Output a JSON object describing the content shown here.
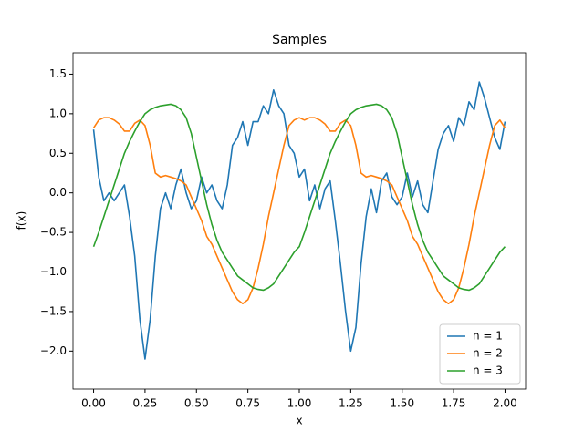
{
  "chart_data": {
    "type": "line",
    "title": "Samples",
    "x_label": "x",
    "y_label": "f(x)",
    "x": [
      0,
      0.025,
      0.05,
      0.075,
      0.1,
      0.125,
      0.15,
      0.175,
      0.2,
      0.225,
      0.25,
      0.275,
      0.3,
      0.325,
      0.35,
      0.375,
      0.4,
      0.425,
      0.45,
      0.475,
      0.5,
      0.525,
      0.55,
      0.575,
      0.6,
      0.625,
      0.65,
      0.675,
      0.7,
      0.725,
      0.75,
      0.775,
      0.8,
      0.825,
      0.85,
      0.875,
      0.9,
      0.925,
      0.95,
      0.975,
      1,
      1.025,
      1.05,
      1.075,
      1.1,
      1.125,
      1.15,
      1.175,
      1.2,
      1.225,
      1.25,
      1.275,
      1.3,
      1.325,
      1.35,
      1.375,
      1.4,
      1.425,
      1.45,
      1.475,
      1.5,
      1.525,
      1.55,
      1.575,
      1.6,
      1.625,
      1.65,
      1.675,
      1.7,
      1.725,
      1.75,
      1.775,
      1.8,
      1.825,
      1.85,
      1.875,
      1.9,
      1.925,
      1.95,
      1.975,
      2
    ],
    "series": [
      {
        "name": "n = 1",
        "color": "#1f77b4",
        "values": [
          0.8,
          0.2,
          -0.1,
          0.0,
          -0.1,
          0.0,
          0.1,
          -0.3,
          -0.8,
          -1.6,
          -2.1,
          -1.6,
          -0.8,
          -0.2,
          0.0,
          -0.2,
          0.1,
          0.3,
          0.0,
          -0.2,
          -0.1,
          0.2,
          0.0,
          0.1,
          -0.1,
          -0.2,
          0.1,
          0.6,
          0.7,
          0.9,
          0.6,
          0.9,
          0.9,
          1.1,
          1.0,
          1.3,
          1.1,
          1.0,
          0.6,
          0.5,
          0.2,
          0.3,
          -0.1,
          0.1,
          -0.2,
          0.05,
          0.15,
          -0.35,
          -0.9,
          -1.5,
          -2.0,
          -1.7,
          -0.9,
          -0.3,
          0.05,
          -0.25,
          0.15,
          0.25,
          -0.05,
          -0.15,
          -0.05,
          0.25,
          -0.05,
          0.15,
          -0.15,
          -0.25,
          0.15,
          0.55,
          0.75,
          0.85,
          0.65,
          0.95,
          0.85,
          1.15,
          1.05,
          1.4,
          1.2,
          0.95,
          0.7,
          0.55,
          0.9
        ]
      },
      {
        "name": "n = 2",
        "color": "#ff7f0e",
        "values": [
          0.82,
          0.92,
          0.95,
          0.95,
          0.92,
          0.87,
          0.78,
          0.78,
          0.88,
          0.92,
          0.85,
          0.6,
          0.25,
          0.2,
          0.22,
          0.2,
          0.18,
          0.15,
          0.1,
          -0.05,
          -0.2,
          -0.35,
          -0.55,
          -0.65,
          -0.8,
          -0.95,
          -1.1,
          -1.25,
          -1.35,
          -1.4,
          -1.35,
          -1.2,
          -0.95,
          -0.65,
          -0.3,
          0.0,
          0.3,
          0.6,
          0.85,
          0.92,
          0.95,
          0.92,
          0.95,
          0.95,
          0.92,
          0.87,
          0.78,
          0.78,
          0.88,
          0.92,
          0.85,
          0.6,
          0.25,
          0.2,
          0.22,
          0.2,
          0.18,
          0.15,
          0.1,
          -0.05,
          -0.2,
          -0.35,
          -0.55,
          -0.65,
          -0.8,
          -0.95,
          -1.1,
          -1.25,
          -1.35,
          -1.4,
          -1.35,
          -1.2,
          -0.95,
          -0.65,
          -0.3,
          0.0,
          0.3,
          0.6,
          0.85,
          0.92,
          0.82
        ]
      },
      {
        "name": "n = 3",
        "color": "#2ca02c",
        "values": [
          -0.68,
          -0.5,
          -0.3,
          -0.1,
          0.1,
          0.3,
          0.5,
          0.65,
          0.78,
          0.9,
          1.0,
          1.05,
          1.08,
          1.1,
          1.11,
          1.12,
          1.1,
          1.05,
          0.95,
          0.75,
          0.45,
          0.15,
          -0.15,
          -0.4,
          -0.6,
          -0.75,
          -0.85,
          -0.95,
          -1.05,
          -1.1,
          -1.15,
          -1.2,
          -1.22,
          -1.23,
          -1.2,
          -1.15,
          -1.05,
          -0.95,
          -0.85,
          -0.75,
          -0.68,
          -0.5,
          -0.3,
          -0.1,
          0.1,
          0.3,
          0.5,
          0.65,
          0.78,
          0.9,
          1.0,
          1.05,
          1.08,
          1.1,
          1.11,
          1.12,
          1.1,
          1.05,
          0.95,
          0.75,
          0.45,
          0.15,
          -0.15,
          -0.4,
          -0.6,
          -0.75,
          -0.85,
          -0.95,
          -1.05,
          -1.1,
          -1.15,
          -1.2,
          -1.22,
          -1.23,
          -1.2,
          -1.15,
          -1.05,
          -0.95,
          -0.85,
          -0.75,
          -0.68
        ]
      }
    ],
    "xlim": [
      -0.1,
      2.1
    ],
    "ylim": [
      -2.48,
      1.77
    ],
    "xticks": [
      {
        "value": 0,
        "label": "0.00"
      },
      {
        "value": 0.25,
        "label": "0.25"
      },
      {
        "value": 0.5,
        "label": "0.50"
      },
      {
        "value": 0.75,
        "label": "0.75"
      },
      {
        "value": 1,
        "label": "1.00"
      },
      {
        "value": 1.25,
        "label": "1.25"
      },
      {
        "value": 1.5,
        "label": "1.50"
      },
      {
        "value": 1.75,
        "label": "1.75"
      },
      {
        "value": 2,
        "label": "2.00"
      }
    ],
    "yticks": [
      {
        "value": -2,
        "label": "−2.0"
      },
      {
        "value": -1.5,
        "label": "−1.5"
      },
      {
        "value": -1,
        "label": "−1.0"
      },
      {
        "value": -0.5,
        "label": "−0.5"
      },
      {
        "value": 0,
        "label": "0.0"
      },
      0.5,
      {
        "value": 1,
        "label": "1.0"
      },
      1.5
    ],
    "legend": "lower right"
  }
}
